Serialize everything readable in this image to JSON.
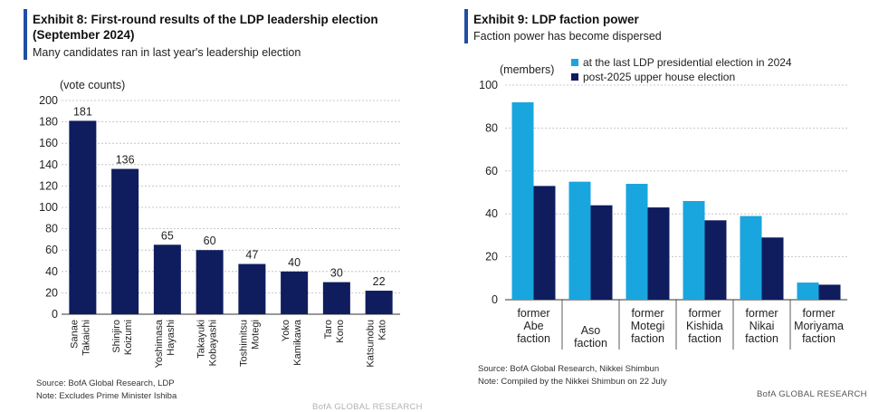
{
  "colors": {
    "accent": "#1f4fa3",
    "navy": "#0f1c5e",
    "cyan": "#19a6de",
    "grid": "#b9b9b9"
  },
  "left": {
    "title": "Exhibit 8: First-round results of the LDP leadership election (September 2024)",
    "subtitle": "Many candidates ran in last year's leadership election",
    "source": "Source: BofA Global Research, LDP",
    "note": "Note: Excludes Prime Minister Ishiba",
    "brand": "BofA GLOBAL RESEARCH"
  },
  "right": {
    "title": "Exhibit 9: LDP faction power",
    "subtitle": "Faction power has become dispersed",
    "source": "Source: BofA Global Research, Nikkei Shimbun",
    "note": "Note: Compiled by the Nikkei Shimbun on 22 July",
    "brand": "BofA GLOBAL RESEARCH"
  },
  "chart_data": [
    {
      "type": "bar",
      "title": "Exhibit 8: First-round results of the LDP leadership election (September 2024)",
      "ylabel": "(vote counts)",
      "xlabel": "",
      "ylim": [
        0,
        200
      ],
      "yticks": [
        "0",
        "20",
        "40",
        "60",
        "80",
        "100",
        "120",
        "140",
        "160",
        "180",
        "200"
      ],
      "grid": true,
      "categories": [
        [
          "Sanae",
          "Takaichi"
        ],
        [
          "Shinjiro",
          "Koizumi"
        ],
        [
          "Yoshimasa",
          "Hayashi"
        ],
        [
          "Takayuki",
          "Kobayashi"
        ],
        [
          "Toshimitsu",
          "Motegi"
        ],
        [
          "Yoko",
          "Kamikawa"
        ],
        [
          "Taro",
          "Kono"
        ],
        [
          "Katsunobu",
          "Kato"
        ]
      ],
      "values": [
        181,
        136,
        65,
        60,
        47,
        40,
        30,
        22
      ],
      "data_labels": [
        "181",
        "136",
        "65",
        "60",
        "47",
        "40",
        "30",
        "22"
      ]
    },
    {
      "type": "bar",
      "title": "Exhibit 9: LDP faction power",
      "ylabel": "(members)",
      "xlabel": "",
      "ylim": [
        0,
        100
      ],
      "yticks": [
        "0",
        "20",
        "40",
        "60",
        "80",
        "100"
      ],
      "grid": true,
      "legend_position": "top",
      "categories": [
        [
          "former",
          "Abe",
          "faction"
        ],
        [
          "Aso",
          "faction"
        ],
        [
          "former",
          "Motegi",
          "faction"
        ],
        [
          "former",
          "Kishida",
          "faction"
        ],
        [
          "former",
          "Nikai",
          "faction"
        ],
        [
          "former",
          "Moriyama",
          "faction"
        ]
      ],
      "series": [
        {
          "name": "at the last LDP presidential election in 2024",
          "values": [
            92,
            55,
            54,
            46,
            39,
            8
          ]
        },
        {
          "name": "post-2025 upper house election",
          "values": [
            53,
            44,
            43,
            37,
            29,
            7
          ]
        }
      ]
    }
  ]
}
